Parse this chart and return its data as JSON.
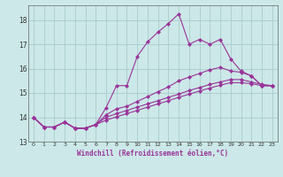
{
  "xlabel": "Windchill (Refroidissement éolien,°C)",
  "bg_color": "#cce8e8",
  "grid_color": "#aacccc",
  "line_color": "#993399",
  "xlim": [
    -0.5,
    23.5
  ],
  "ylim": [
    13.0,
    18.6
  ],
  "yticks": [
    13,
    14,
    15,
    16,
    17,
    18
  ],
  "xticks": [
    0,
    1,
    2,
    3,
    4,
    5,
    6,
    7,
    8,
    9,
    10,
    11,
    12,
    13,
    14,
    15,
    16,
    17,
    18,
    19,
    20,
    21,
    22,
    23
  ],
  "series": [
    [
      14.0,
      13.6,
      13.6,
      13.8,
      13.55,
      13.55,
      13.7,
      14.4,
      15.3,
      15.3,
      16.5,
      17.1,
      17.5,
      17.85,
      18.25,
      17.0,
      17.2,
      17.0,
      17.2,
      16.4,
      15.9,
      15.7,
      15.3,
      15.3
    ],
    [
      14.0,
      13.6,
      13.6,
      13.8,
      13.55,
      13.55,
      13.7,
      14.1,
      14.35,
      14.45,
      14.65,
      14.85,
      15.05,
      15.25,
      15.5,
      15.65,
      15.8,
      15.95,
      16.05,
      15.9,
      15.85,
      15.7,
      15.3,
      15.3
    ],
    [
      14.0,
      13.6,
      13.6,
      13.8,
      13.55,
      13.55,
      13.7,
      14.0,
      14.15,
      14.28,
      14.42,
      14.55,
      14.68,
      14.82,
      14.95,
      15.1,
      15.22,
      15.35,
      15.45,
      15.55,
      15.55,
      15.45,
      15.35,
      15.3
    ],
    [
      14.0,
      13.6,
      13.6,
      13.8,
      13.55,
      13.55,
      13.7,
      13.88,
      14.02,
      14.15,
      14.28,
      14.42,
      14.55,
      14.68,
      14.82,
      14.95,
      15.08,
      15.2,
      15.32,
      15.42,
      15.42,
      15.38,
      15.3,
      15.3
    ]
  ]
}
